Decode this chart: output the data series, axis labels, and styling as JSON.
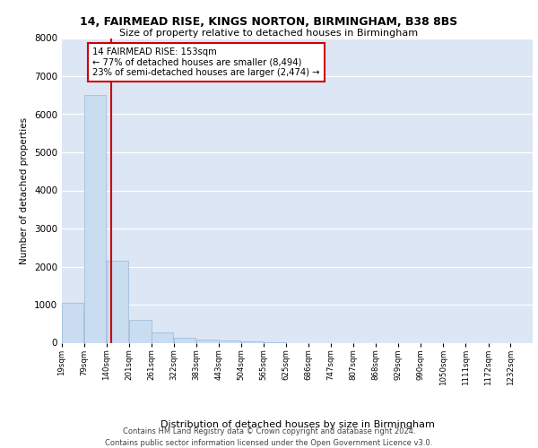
{
  "title_line1": "14, FAIRMEAD RISE, KINGS NORTON, BIRMINGHAM, B38 8BS",
  "title_line2": "Size of property relative to detached houses in Birmingham",
  "xlabel": "Distribution of detached houses by size in Birmingham",
  "ylabel": "Number of detached properties",
  "footnote1": "Contains HM Land Registry data © Crown copyright and database right 2024.",
  "footnote2": "Contains public sector information licensed under the Open Government Licence v3.0.",
  "annotation_line1": "14 FAIRMEAD RISE: 153sqm",
  "annotation_line2": "← 77% of detached houses are smaller (8,494)",
  "annotation_line3": "23% of semi-detached houses are larger (2,474) →",
  "bar_edges": [
    19,
    79,
    140,
    201,
    261,
    322,
    383,
    443,
    504,
    565,
    625,
    686,
    747,
    807,
    868,
    929,
    990,
    1050,
    1111,
    1172,
    1232
  ],
  "bar_heights": [
    1050,
    6500,
    2150,
    600,
    280,
    130,
    80,
    50,
    30,
    10,
    0,
    0,
    0,
    0,
    0,
    0,
    0,
    0,
    0,
    0
  ],
  "bar_color": "#c9dcf0",
  "bar_edgecolor": "#9ab8d8",
  "vline_color": "#cc0000",
  "vline_x": 153,
  "annotation_box_color": "#cc0000",
  "background_color": "#ffffff",
  "plot_bg_color": "#dce6f5",
  "grid_color": "#ffffff",
  "ylim": [
    0,
    8000
  ],
  "yticks": [
    0,
    1000,
    2000,
    3000,
    4000,
    5000,
    6000,
    7000,
    8000
  ]
}
